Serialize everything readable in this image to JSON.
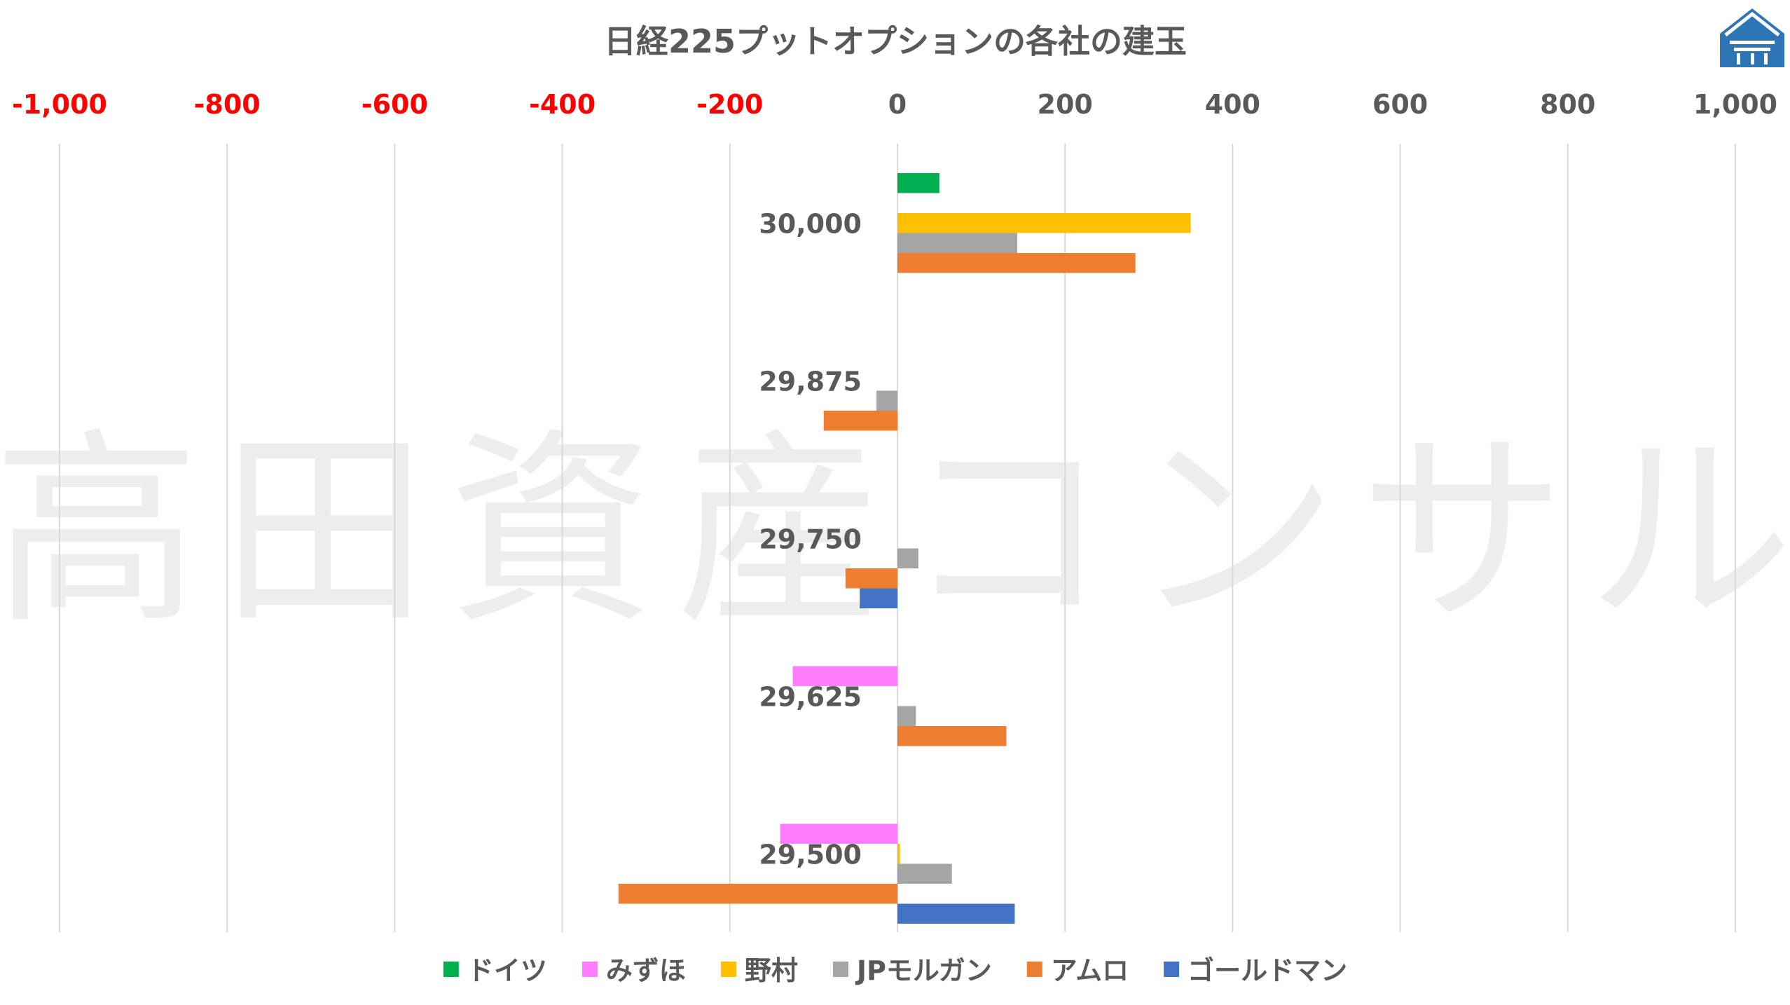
{
  "chart_data": {
    "type": "bar",
    "orientation": "horizontal",
    "title": "日経225プットオプションの各社の建玉",
    "watermark": "高田資産コンサル",
    "xlim": [
      -1000,
      1000
    ],
    "x_ticks": [
      -1000,
      -800,
      -600,
      -400,
      -200,
      0,
      200,
      400,
      600,
      800,
      1000
    ],
    "x_tick_labels": [
      "-1,000",
      "-800",
      "-600",
      "-400",
      "-200",
      "0",
      "200",
      "400",
      "600",
      "800",
      "1,000"
    ],
    "negative_tick_color": "#ff0000",
    "positive_tick_color": "#595959",
    "grid": true,
    "legend_position": "bottom",
    "categories": [
      "30,000",
      "29,875",
      "29,750",
      "29,625",
      "29,500"
    ],
    "series": [
      {
        "name": "ドイツ",
        "color": "#00b050",
        "values": [
          50,
          0,
          0,
          0,
          0
        ]
      },
      {
        "name": "みずほ",
        "color": "#ff7dff",
        "values": [
          0,
          0,
          0,
          -125,
          -140
        ]
      },
      {
        "name": "野村",
        "color": "#ffc000",
        "values": [
          350,
          0,
          0,
          0,
          3
        ]
      },
      {
        "name": "JPモルガン",
        "color": "#a5a5a5",
        "values": [
          143,
          -25,
          25,
          22,
          65
        ]
      },
      {
        "name": "アムロ",
        "color": "#ed7d31",
        "values": [
          284,
          -88,
          -62,
          130,
          -333
        ]
      },
      {
        "name": "ゴールドマン",
        "color": "#4472c4",
        "values": [
          0,
          0,
          -45,
          0,
          140
        ]
      }
    ]
  },
  "logo": {
    "icon": "house-logo-icon",
    "color": "#2e75b6"
  }
}
